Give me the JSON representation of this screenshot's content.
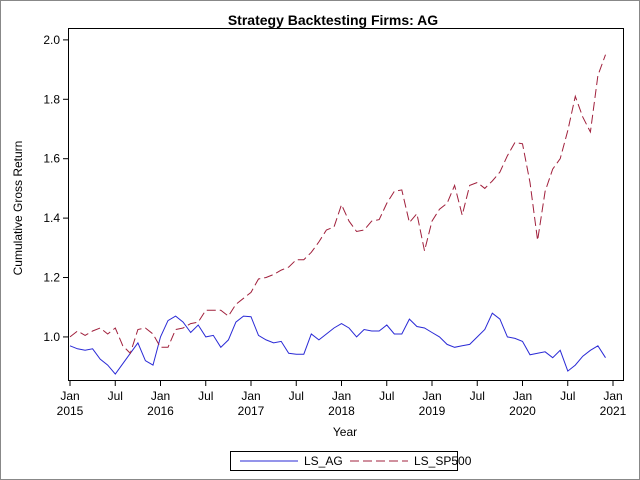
{
  "chart_data": {
    "type": "line",
    "title": "Strategy Backtesting  Firms: AG",
    "x_label": "Year",
    "y_label": "Cumulative Gross Return",
    "x": [
      "2015-01",
      "2015-02",
      "2015-03",
      "2015-04",
      "2015-05",
      "2015-06",
      "2015-07",
      "2015-08",
      "2015-09",
      "2015-10",
      "2015-11",
      "2015-12",
      "2016-01",
      "2016-02",
      "2016-03",
      "2016-04",
      "2016-05",
      "2016-06",
      "2016-07",
      "2016-08",
      "2016-09",
      "2016-10",
      "2016-11",
      "2016-12",
      "2017-01",
      "2017-02",
      "2017-03",
      "2017-04",
      "2017-05",
      "2017-06",
      "2017-07",
      "2017-08",
      "2017-09",
      "2017-10",
      "2017-11",
      "2017-12",
      "2018-01",
      "2018-02",
      "2018-03",
      "2018-04",
      "2018-05",
      "2018-06",
      "2018-07",
      "2018-08",
      "2018-09",
      "2018-10",
      "2018-11",
      "2018-12",
      "2019-01",
      "2019-02",
      "2019-03",
      "2019-04",
      "2019-05",
      "2019-06",
      "2019-07",
      "2019-08",
      "2019-09",
      "2019-10",
      "2019-11",
      "2019-12",
      "2020-01",
      "2020-02",
      "2020-03",
      "2020-04",
      "2020-05",
      "2020-06",
      "2020-07",
      "2020-08",
      "2020-09",
      "2020-10",
      "2020-11",
      "2020-12"
    ],
    "series": [
      {
        "name": "LS_AG",
        "color": "#2a2ad6",
        "dash": false,
        "values": [
          0.97,
          0.96,
          0.955,
          0.96,
          0.925,
          0.905,
          0.875,
          0.91,
          0.945,
          0.98,
          0.92,
          0.905,
          1.0,
          1.055,
          1.07,
          1.05,
          1.015,
          1.04,
          1.0,
          1.005,
          0.965,
          0.99,
          1.05,
          1.07,
          1.068,
          1.005,
          0.99,
          0.98,
          0.985,
          0.945,
          0.942,
          0.942,
          1.01,
          0.99,
          1.01,
          1.03,
          1.045,
          1.03,
          1.0,
          1.025,
          1.02,
          1.02,
          1.04,
          1.01,
          1.01,
          1.06,
          1.035,
          1.03,
          1.015,
          1.0,
          0.975,
          0.965,
          0.97,
          0.975,
          1.0,
          1.025,
          1.08,
          1.06,
          1.0,
          0.995,
          0.985,
          0.94,
          0.945,
          0.95,
          0.93,
          0.955,
          0.885,
          0.905,
          0.935,
          0.955,
          0.97,
          0.93
        ]
      },
      {
        "name": "LS_SP500",
        "color": "#a0203c",
        "dash": true,
        "values": [
          1.0,
          1.02,
          1.005,
          1.02,
          1.03,
          1.01,
          1.03,
          0.97,
          0.945,
          1.025,
          1.03,
          1.01,
          0.965,
          0.965,
          1.025,
          1.03,
          1.045,
          1.05,
          1.09,
          1.09,
          1.09,
          1.07,
          1.11,
          1.13,
          1.15,
          1.195,
          1.2,
          1.21,
          1.225,
          1.235,
          1.26,
          1.26,
          1.285,
          1.32,
          1.36,
          1.37,
          1.445,
          1.39,
          1.355,
          1.36,
          1.39,
          1.395,
          1.45,
          1.49,
          1.495,
          1.385,
          1.415,
          1.29,
          1.39,
          1.43,
          1.45,
          1.51,
          1.41,
          1.51,
          1.52,
          1.5,
          1.525,
          1.555,
          1.61,
          1.655,
          1.65,
          1.52,
          1.325,
          1.49,
          1.565,
          1.6,
          1.695,
          1.81,
          1.74,
          1.69,
          1.88,
          1.95
        ]
      }
    ],
    "xlim": [
      "2015-01",
      "2021-01"
    ],
    "xticks": [
      {
        "value": "2015-01",
        "label": [
          "Jan",
          "2015"
        ]
      },
      {
        "value": "2015-07",
        "label": [
          "Jul"
        ]
      },
      {
        "value": "2016-01",
        "label": [
          "Jan",
          "2016"
        ]
      },
      {
        "value": "2016-07",
        "label": [
          "Jul"
        ]
      },
      {
        "value": "2017-01",
        "label": [
          "Jan",
          "2017"
        ]
      },
      {
        "value": "2017-07",
        "label": [
          "Jul"
        ]
      },
      {
        "value": "2018-01",
        "label": [
          "Jan",
          "2018"
        ]
      },
      {
        "value": "2018-07",
        "label": [
          "Jul"
        ]
      },
      {
        "value": "2019-01",
        "label": [
          "Jan",
          "2019"
        ]
      },
      {
        "value": "2019-07",
        "label": [
          "Jul"
        ]
      },
      {
        "value": "2020-01",
        "label": [
          "Jan",
          "2020"
        ]
      },
      {
        "value": "2020-07",
        "label": [
          "Jul"
        ]
      },
      {
        "value": "2021-01",
        "label": [
          "Jan",
          "2021"
        ]
      }
    ],
    "ylim": [
      0.855,
      2.04
    ],
    "yticks": [
      {
        "value": 1,
        "label": "1.0"
      },
      1.2,
      1.4,
      1.6,
      1.8,
      {
        "value": 2,
        "label": "2.0"
      }
    ],
    "legend": "bottom"
  }
}
